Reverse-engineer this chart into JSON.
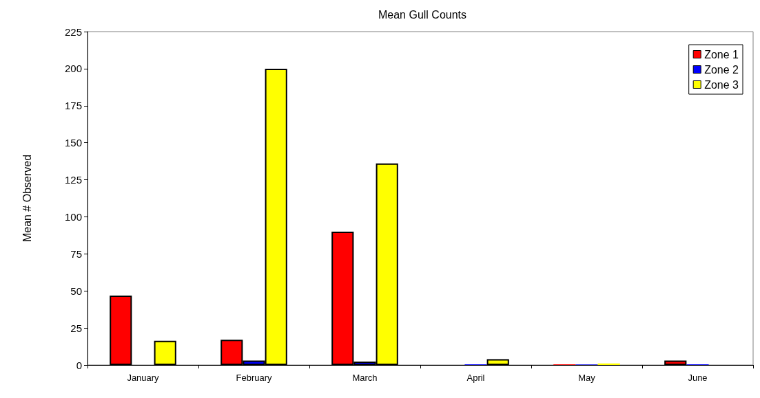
{
  "chart_data": {
    "type": "bar",
    "title": "Mean Gull Counts",
    "ylabel": "Mean # Observed",
    "categories": [
      "January",
      "February",
      "March",
      "April",
      "May",
      "June"
    ],
    "series": [
      {
        "name": "Zone 1",
        "color": "#ff0000",
        "values": [
          46.8,
          17,
          90,
          null,
          0.5,
          3
        ]
      },
      {
        "name": "Zone 2",
        "color": "#0000ff",
        "values": [
          null,
          3,
          2.3,
          0.5,
          0.3,
          0.5
        ]
      },
      {
        "name": "Zone 3",
        "color": "#ffff00",
        "values": [
          16.4,
          200,
          136,
          4,
          1,
          null
        ]
      }
    ],
    "ylim": [
      0,
      225
    ],
    "yticks": [
      0,
      25,
      50,
      75,
      100,
      125,
      150,
      175,
      200,
      225
    ],
    "grid": false,
    "legend": "top right"
  }
}
